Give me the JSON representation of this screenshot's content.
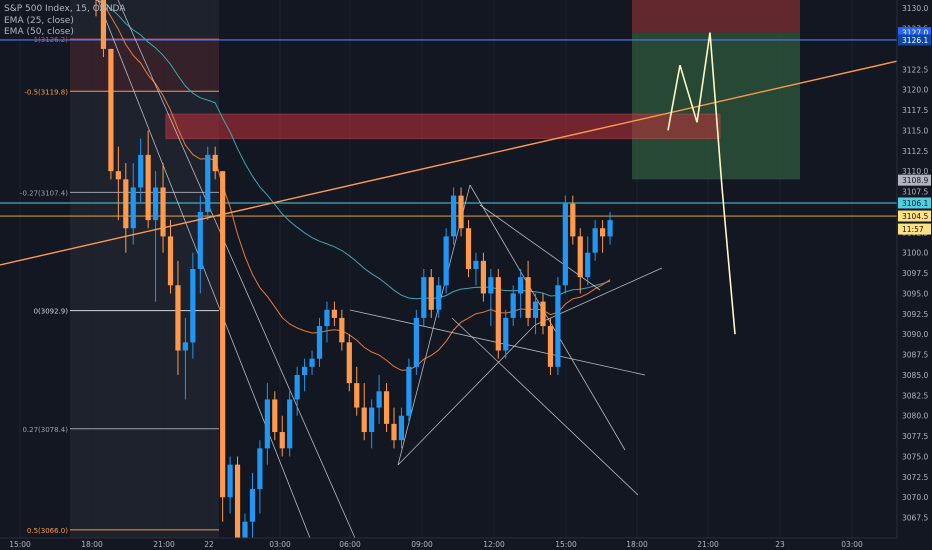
{
  "legend": {
    "symbol_line": "S&P 500 Index, 15, OANDA",
    "ema25_line": "EMA (25, close)",
    "ema50_line": "EMA (50, close)"
  },
  "colors": {
    "background": "#131722",
    "bull": "#2196f3",
    "bear": "#ff9a4d",
    "ema25": "#e8793b",
    "ema50": "#3aa8b0",
    "trendline": "#ff9a4d",
    "resistance_zone": "#c2323a",
    "target_zone": "#2f5a3b",
    "stop_zone": "#6b2a30",
    "axis_text": "#b2b5be"
  },
  "axis": {
    "x_labels": [
      "15:00",
      "18:00",
      "21:00",
      "22",
      "03:00",
      "06:00",
      "09:00",
      "12:00",
      "15:00",
      "18:00",
      "21:00",
      "23",
      "03:00"
    ],
    "y_labels": [
      "3130.0",
      "3127.5",
      "3122.5",
      "3120.0",
      "3117.5",
      "3115.0",
      "3112.5",
      "3110.0",
      "3107.5",
      "3102.5",
      "3100.0",
      "3097.5",
      "3095.0",
      "3092.5",
      "3090.0",
      "3087.5",
      "3085.0",
      "3082.5",
      "3080.0",
      "3077.5",
      "3075.0",
      "3072.5",
      "3070.0",
      "3067.5"
    ],
    "price_tags": [
      {
        "text": "3127.0",
        "bg": "#2962ff",
        "fg": "#ffffff"
      },
      {
        "text": "3126.1",
        "bg": "#0d47a1",
        "fg": "#ffffff"
      },
      {
        "text": "3108.9",
        "bg": "#b2b5be",
        "fg": "#131722"
      },
      {
        "text": "3106.1",
        "bg": "#4dd0e1",
        "fg": "#131722"
      },
      {
        "text": "3104.5",
        "bg": "#ffe082",
        "fg": "#131722"
      },
      {
        "text": "11:57",
        "bg": "#ffe082",
        "fg": "#131722"
      }
    ]
  },
  "fib_labels": [
    {
      "text": "1(3126.2)",
      "level": 3126.2
    },
    {
      "text": "-0.5(3119.8)",
      "level": 3119.8
    },
    {
      "text": "-0.27(3107.4)",
      "level": 3107.4
    },
    {
      "text": "0(3092.9)",
      "level": 3092.9
    },
    {
      "text": "0.27(3078.4)",
      "level": 3078.4
    },
    {
      "text": "0.5(3066.0)",
      "level": 3066.0
    }
  ],
  "chart_data": {
    "type": "candlestick",
    "symbol": "S&P 500 Index",
    "interval": "15",
    "source": "OANDA",
    "y_range": [
      3065,
      3131
    ],
    "horizontal_levels": [
      3126.1,
      3106.1,
      3104.5
    ],
    "resistance_zone": [
      3114,
      3117
    ],
    "target_zone": [
      3109,
      3127
    ],
    "stop_zone": [
      3127,
      3131
    ],
    "projection_path": [
      3115,
      3123,
      3116,
      3127,
      3108,
      3090
    ],
    "candles": [
      [
        3132,
        3132.5,
        3129,
        3131
      ],
      [
        3131,
        3131,
        3124,
        3125
      ],
      [
        3125,
        3125,
        3109,
        3110
      ],
      [
        3110,
        3113,
        3104,
        3109
      ],
      [
        3109,
        3111,
        3100,
        3103
      ],
      [
        3103,
        3111,
        3101,
        3108
      ],
      [
        3108,
        3114,
        3106,
        3112
      ],
      [
        3112,
        3115,
        3103,
        3104
      ],
      [
        3104,
        3110,
        3094,
        3108
      ],
      [
        3108,
        3111,
        3100,
        3102
      ],
      [
        3102,
        3104,
        3095,
        3096
      ],
      [
        3096,
        3099,
        3085,
        3088
      ],
      [
        3088,
        3092,
        3082,
        3089
      ],
      [
        3089,
        3100,
        3087,
        3098
      ],
      [
        3098,
        3107,
        3095,
        3105
      ],
      [
        3105,
        3113,
        3104,
        3112
      ],
      [
        3112,
        3113,
        3109,
        3110
      ],
      [
        3110,
        3110,
        3067,
        3070
      ],
      [
        3070,
        3075,
        3068,
        3074
      ],
      [
        3074,
        3075,
        3061,
        3062
      ],
      [
        3063,
        3068,
        3061,
        3067
      ],
      [
        3067,
        3073,
        3064,
        3071
      ],
      [
        3071,
        3077,
        3068,
        3076
      ],
      [
        3076,
        3084,
        3074,
        3082
      ],
      [
        3082,
        3083,
        3077,
        3078
      ],
      [
        3078,
        3080,
        3075,
        3076
      ],
      [
        3076,
        3083,
        3075,
        3082
      ],
      [
        3082,
        3086,
        3080,
        3085
      ],
      [
        3085,
        3087,
        3083,
        3086
      ],
      [
        3086,
        3088,
        3085,
        3087
      ],
      [
        3087,
        3092,
        3086,
        3091
      ],
      [
        3091,
        3094,
        3089,
        3093
      ],
      [
        3093,
        3094,
        3091,
        3092
      ],
      [
        3092,
        3093,
        3088,
        3089
      ],
      [
        3089,
        3090,
        3083,
        3084
      ],
      [
        3084,
        3086,
        3080,
        3081
      ],
      [
        3081,
        3084,
        3077,
        3078
      ],
      [
        3078,
        3082,
        3076,
        3081
      ],
      [
        3081,
        3085,
        3079,
        3083
      ],
      [
        3083,
        3084,
        3078,
        3079
      ],
      [
        3079,
        3081,
        3076,
        3077
      ],
      [
        3077,
        3081,
        3076,
        3080
      ],
      [
        3080,
        3087,
        3079,
        3086
      ],
      [
        3086,
        3093,
        3085,
        3092
      ],
      [
        3092,
        3098,
        3091,
        3097
      ],
      [
        3097,
        3098,
        3092,
        3093
      ],
      [
        3093,
        3097,
        3092,
        3096
      ],
      [
        3096,
        3103,
        3095,
        3102
      ],
      [
        3102,
        3108,
        3101,
        3107
      ],
      [
        3107,
        3108,
        3102,
        3103
      ],
      [
        3103,
        3104,
        3097,
        3098
      ],
      [
        3098,
        3100,
        3096,
        3099
      ],
      [
        3099,
        3100,
        3094,
        3095
      ],
      [
        3095,
        3098,
        3091,
        3097
      ],
      [
        3097,
        3098,
        3087,
        3088
      ],
      [
        3088,
        3093,
        3087,
        3092
      ],
      [
        3092,
        3096,
        3091,
        3095
      ],
      [
        3095,
        3098,
        3092,
        3097
      ],
      [
        3097,
        3099,
        3091,
        3092
      ],
      [
        3092,
        3095,
        3090,
        3094
      ],
      [
        3094,
        3095,
        3090,
        3091
      ],
      [
        3091,
        3092,
        3085,
        3086
      ],
      [
        3086,
        3097,
        3085,
        3096
      ],
      [
        3096,
        3107,
        3095,
        3106
      ],
      [
        3106,
        3107,
        3101,
        3102
      ],
      [
        3102,
        3103,
        3095,
        3097
      ],
      [
        3097,
        3102,
        3096,
        3100
      ],
      [
        3100,
        3104,
        3099,
        3103
      ],
      [
        3103,
        3104,
        3100,
        3102
      ],
      [
        3102,
        3105,
        3101,
        3104
      ]
    ]
  }
}
